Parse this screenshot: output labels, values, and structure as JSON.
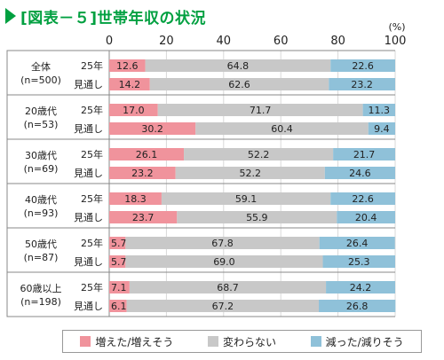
{
  "title": "[図表－５]世帯年収の状況",
  "chart_data": {
    "type": "bar",
    "stacked": true,
    "orientation": "horizontal",
    "unit": "(%)",
    "xlim": [
      0,
      100
    ],
    "xticks": [
      0,
      20,
      40,
      60,
      80,
      100
    ],
    "groups": [
      {
        "label_line1": "全体",
        "label_line2": "(n=500)",
        "rows": [
          {
            "label": "25年",
            "values": [
              12.6,
              64.8,
              22.6
            ]
          },
          {
            "label": "見通し",
            "values": [
              14.2,
              62.6,
              23.2
            ]
          }
        ]
      },
      {
        "label_line1": "20歳代",
        "label_line2": "(n=53)",
        "rows": [
          {
            "label": "25年",
            "values": [
              17.0,
              71.7,
              11.3
            ]
          },
          {
            "label": "見通し",
            "values": [
              30.2,
              60.4,
              9.4
            ]
          }
        ]
      },
      {
        "label_line1": "30歳代",
        "label_line2": "(n=69)",
        "rows": [
          {
            "label": "25年",
            "values": [
              26.1,
              52.2,
              21.7
            ]
          },
          {
            "label": "見通し",
            "values": [
              23.2,
              52.2,
              24.6
            ]
          }
        ]
      },
      {
        "label_line1": "40歳代",
        "label_line2": "(n=93)",
        "rows": [
          {
            "label": "25年",
            "values": [
              18.3,
              59.1,
              22.6
            ]
          },
          {
            "label": "見通し",
            "values": [
              23.7,
              55.9,
              20.4
            ]
          }
        ]
      },
      {
        "label_line1": "50歳代",
        "label_line2": "(n=87)",
        "rows": [
          {
            "label": "25年",
            "values": [
              5.7,
              67.8,
              26.4
            ]
          },
          {
            "label": "見通し",
            "values": [
              5.7,
              69.0,
              25.3
            ]
          }
        ]
      },
      {
        "label_line1": "60歳以上",
        "label_line2": "(n=198)",
        "rows": [
          {
            "label": "25年",
            "values": [
              7.1,
              68.7,
              24.2
            ]
          },
          {
            "label": "見通し",
            "values": [
              6.1,
              67.2,
              26.8
            ]
          }
        ]
      }
    ],
    "series": [
      {
        "name": "増えた/増えそう",
        "color": "#f0939c"
      },
      {
        "name": "変わらない",
        "color": "#c8c8c8"
      },
      {
        "name": "減った/減りそう",
        "color": "#8fc1d9"
      }
    ]
  }
}
